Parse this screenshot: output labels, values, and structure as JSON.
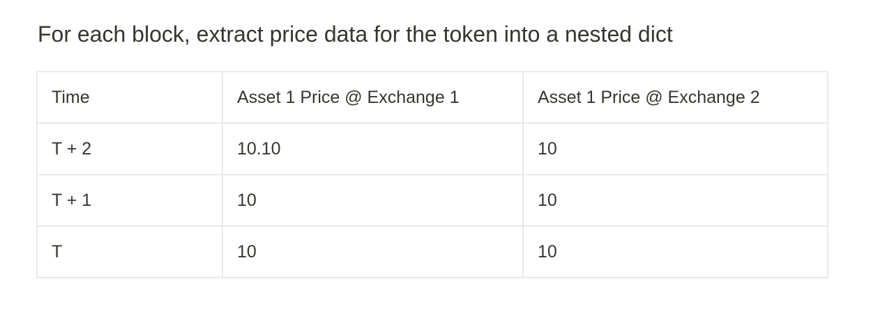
{
  "heading": "For each block, extract price data for the token into a nested dict",
  "table": {
    "headers": [
      "Time",
      "Asset 1 Price @ Exchange 1",
      "Asset 1 Price @ Exchange 2"
    ],
    "rows": [
      [
        "T + 2",
        "10.10",
        "10"
      ],
      [
        "T + 1",
        "10",
        "10"
      ],
      [
        "T",
        "10",
        "10"
      ]
    ]
  }
}
